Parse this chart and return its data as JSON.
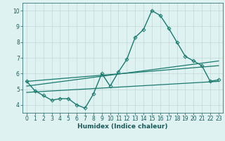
{
  "xlabel": "Humidex (Indice chaleur)",
  "ylabel": "",
  "background_color": "#dff2f2",
  "grid_color": "#c2d8d8",
  "line_color": "#1a7a6e",
  "xlim": [
    -0.5,
    23.5
  ],
  "ylim": [
    3.5,
    10.5
  ],
  "xticks": [
    0,
    1,
    2,
    3,
    4,
    5,
    6,
    7,
    8,
    9,
    10,
    11,
    12,
    13,
    14,
    15,
    16,
    17,
    18,
    19,
    20,
    21,
    22,
    23
  ],
  "yticks": [
    4,
    5,
    6,
    7,
    8,
    9,
    10
  ],
  "series": [
    {
      "x": [
        0,
        1,
        2,
        3,
        4,
        5,
        6,
        7,
        8,
        9,
        10,
        11,
        12,
        13,
        14,
        15,
        16,
        17,
        18,
        19,
        20,
        21,
        22,
        23
      ],
      "y": [
        5.5,
        4.9,
        4.6,
        4.3,
        4.4,
        4.4,
        4.0,
        3.8,
        4.7,
        6.0,
        5.2,
        6.1,
        6.9,
        8.3,
        8.8,
        10.0,
        9.7,
        8.9,
        8.0,
        7.1,
        6.8,
        6.5,
        5.5,
        5.6
      ],
      "marker": "D",
      "markersize": 2.5,
      "linewidth": 1.0
    },
    {
      "x": [
        0,
        23
      ],
      "y": [
        5.5,
        6.5
      ],
      "marker": null,
      "linewidth": 0.9
    },
    {
      "x": [
        0,
        23
      ],
      "y": [
        5.2,
        6.8
      ],
      "marker": null,
      "linewidth": 0.9
    },
    {
      "x": [
        0,
        23
      ],
      "y": [
        4.8,
        5.5
      ],
      "marker": null,
      "linewidth": 0.9
    }
  ],
  "font_color": "#1a5a5a",
  "tick_label_size": 5.5,
  "xlabel_size": 6.5
}
